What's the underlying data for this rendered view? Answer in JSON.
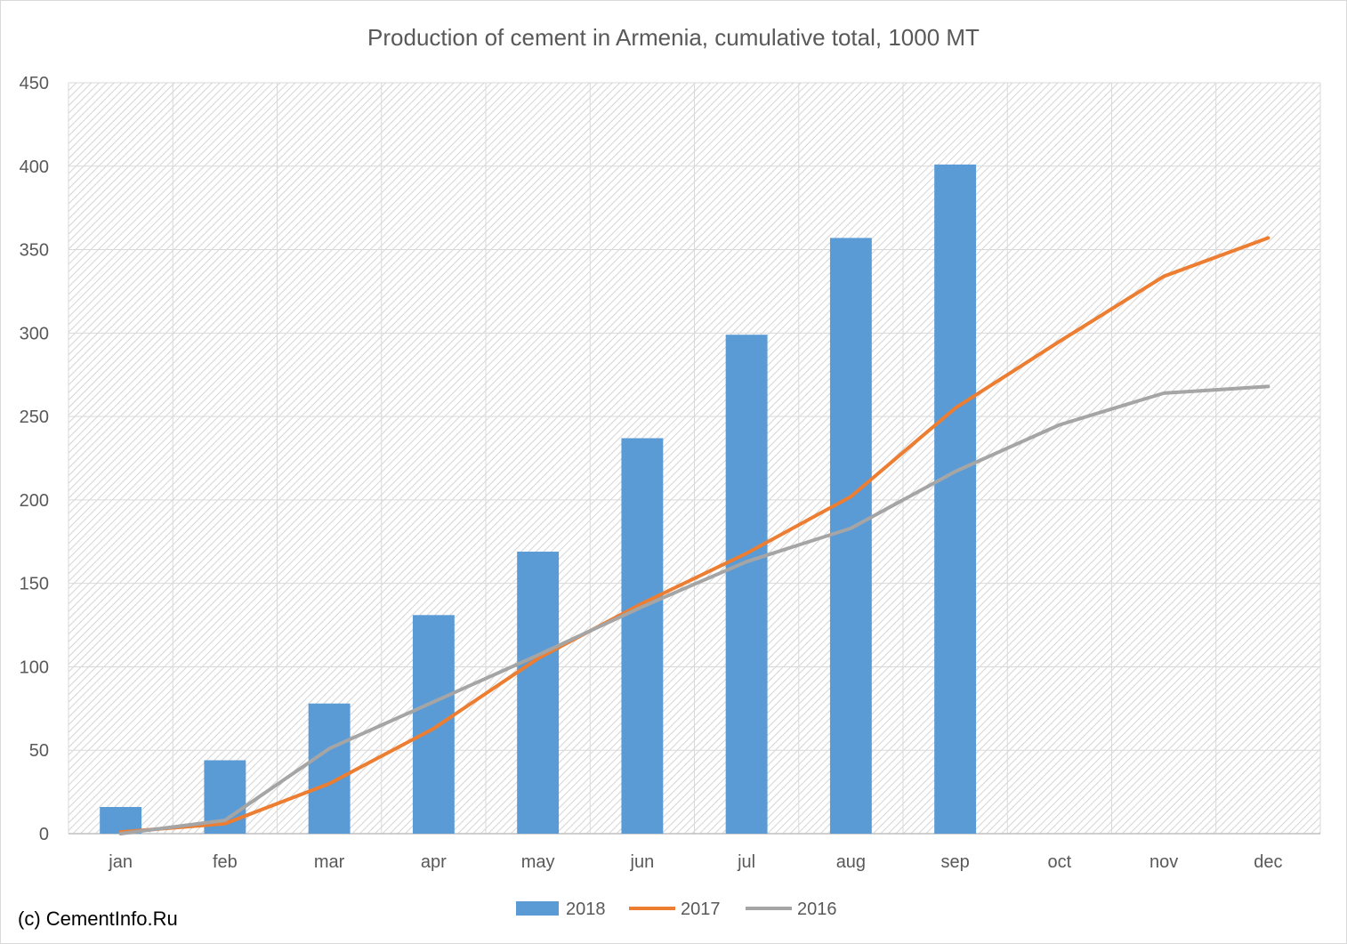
{
  "credit": "(c) CementInfo.Ru",
  "chart_data": {
    "type": "bar",
    "title": "Production of cement in Armenia, cumulative total, 1000 MT",
    "xlabel": "",
    "ylabel": "",
    "categories": [
      "jan",
      "feb",
      "mar",
      "apr",
      "may",
      "jun",
      "jul",
      "aug",
      "sep",
      "oct",
      "nov",
      "dec"
    ],
    "ylim": [
      0,
      450
    ],
    "yticks": [
      0,
      50,
      100,
      150,
      200,
      250,
      300,
      350,
      400,
      450
    ],
    "grid": true,
    "legend_position": "bottom",
    "series": [
      {
        "name": "2018",
        "type": "bar",
        "color": "#5b9bd5",
        "values": [
          16,
          44,
          78,
          131,
          169,
          237,
          299,
          357,
          401,
          null,
          null,
          null
        ]
      },
      {
        "name": "2017",
        "type": "line",
        "color": "#ed7d31",
        "values": [
          1,
          6,
          30,
          63,
          105,
          138,
          168,
          202,
          255,
          295,
          334,
          357
        ]
      },
      {
        "name": "2016",
        "type": "line",
        "color": "#a5a5a5",
        "values": [
          0,
          8,
          51,
          79,
          107,
          136,
          163,
          183,
          217,
          245,
          264,
          268
        ]
      }
    ]
  }
}
